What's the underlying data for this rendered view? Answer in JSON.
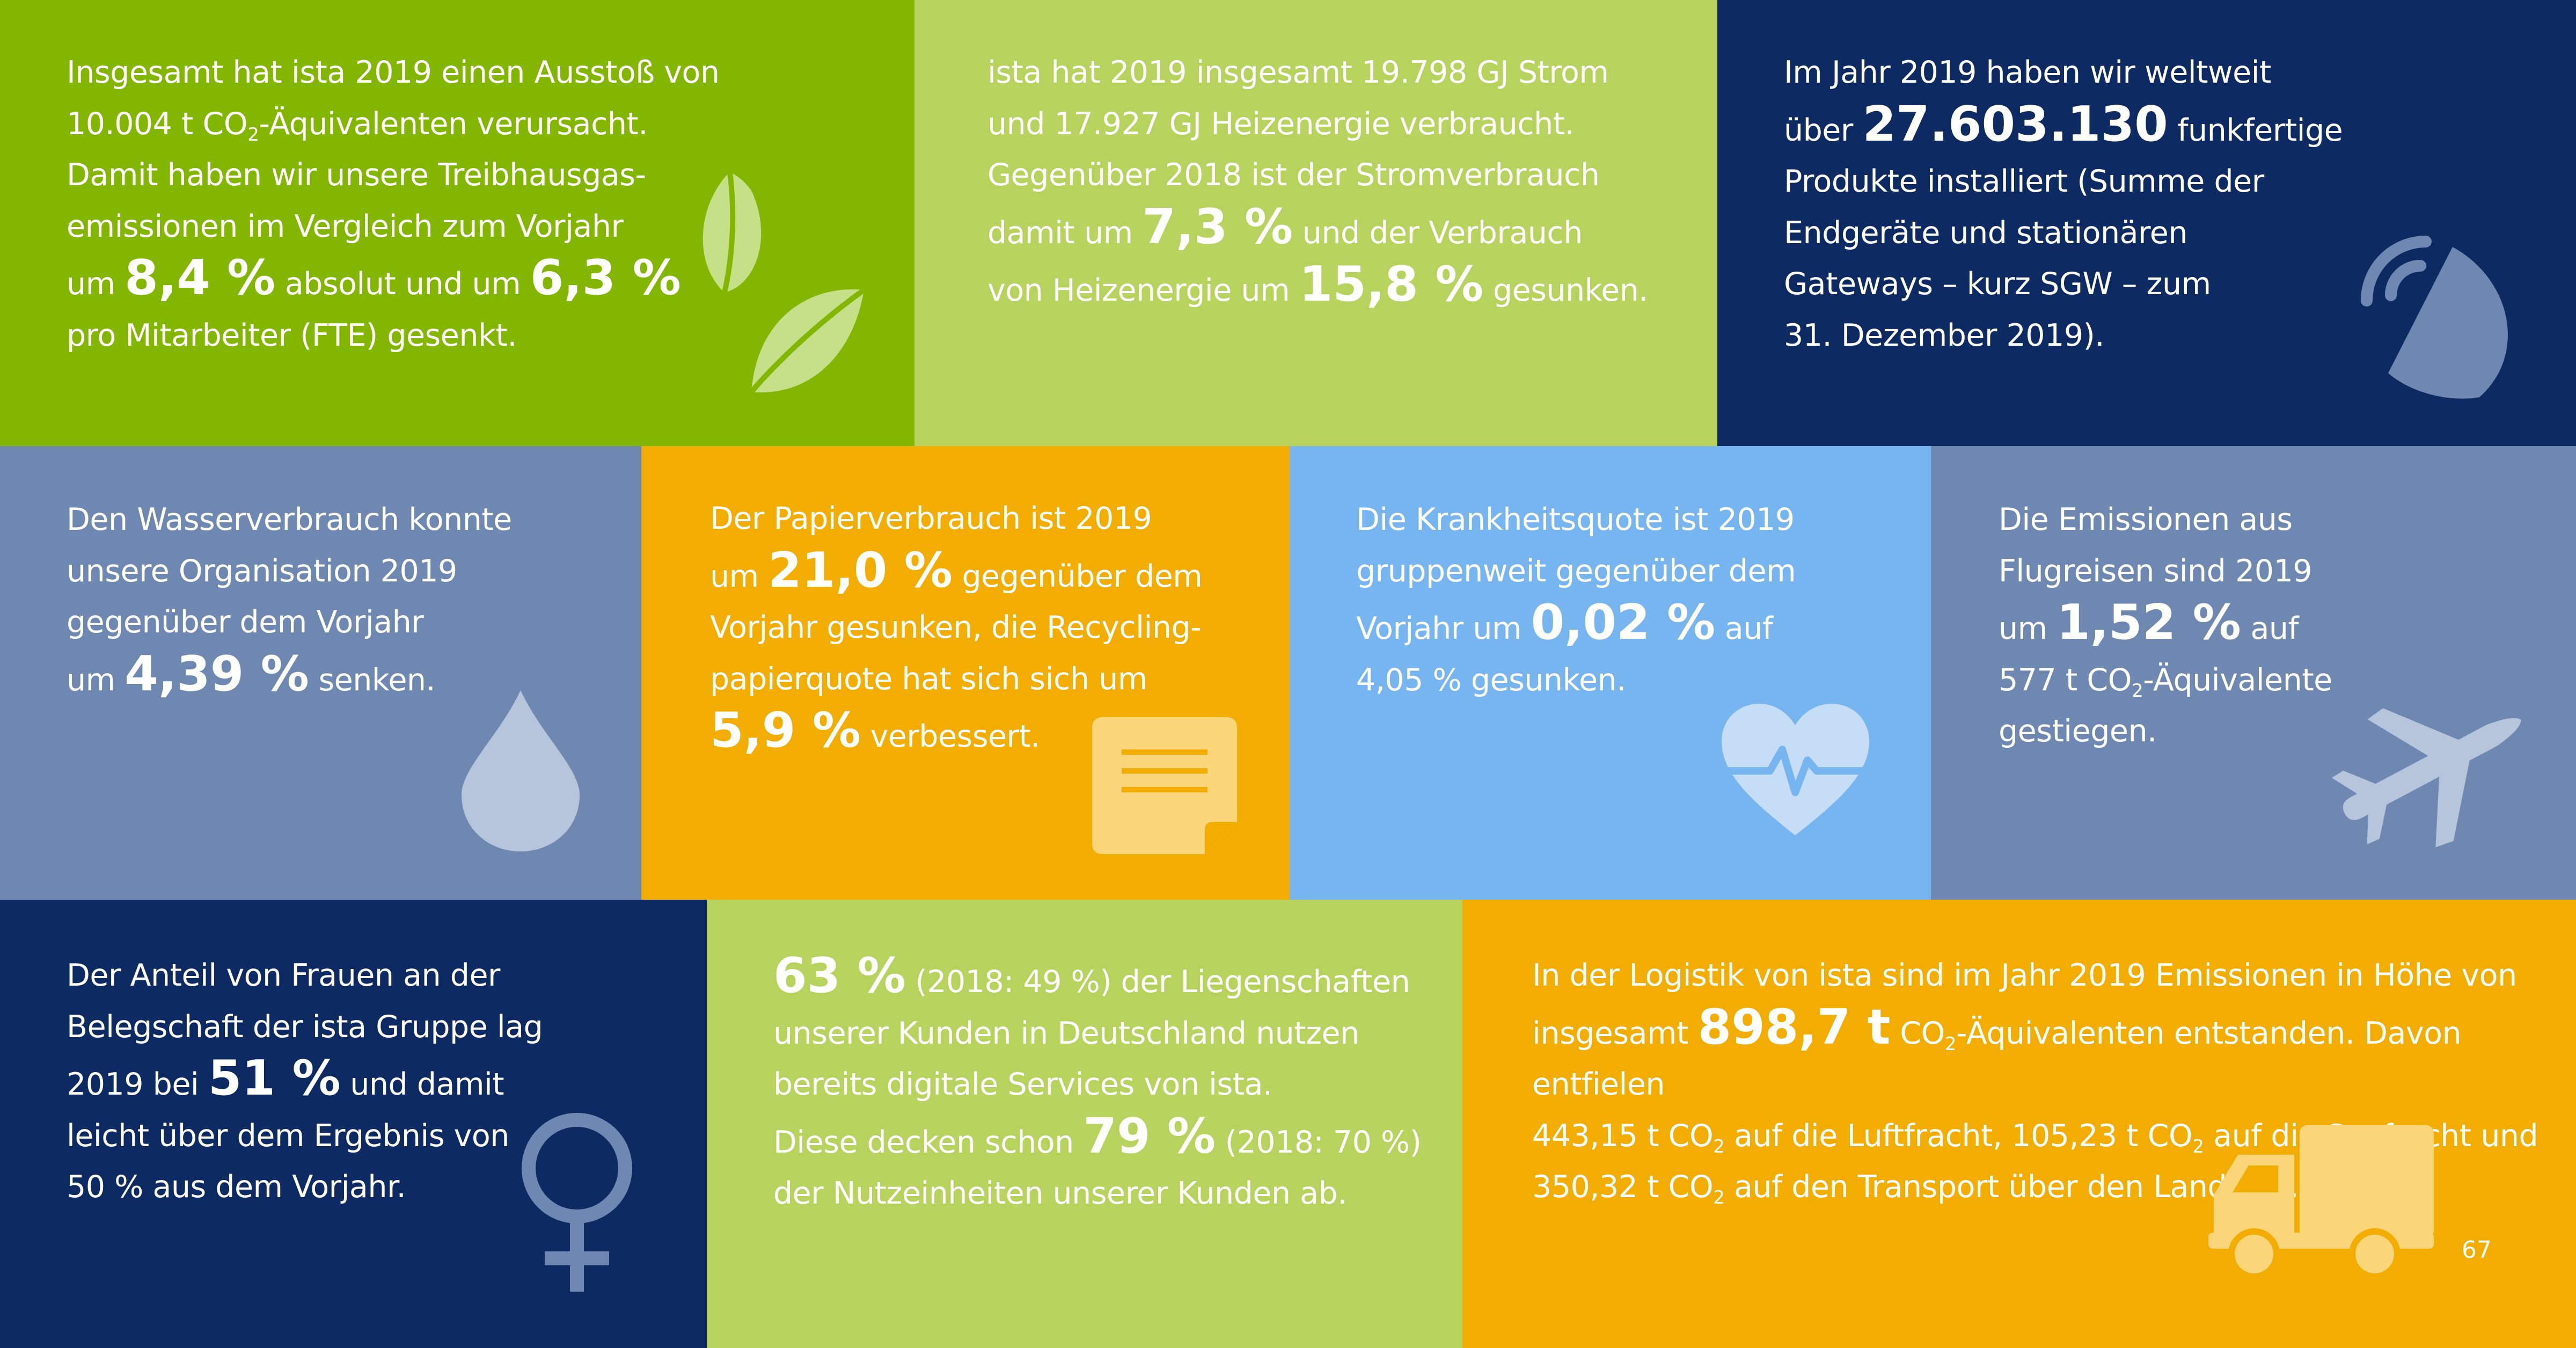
{
  "colors": {
    "green": "#82b600",
    "light_green": "#b7d35e",
    "dark_blue": "#0d2a63",
    "grey_blue": "#6f88b1",
    "orange": "#f2ad00",
    "light_blue": "#76b5f0"
  },
  "tiles": {
    "co2": {
      "icon": "leaves-icon",
      "l1": "Insgesamt hat ista 2019 einen Ausstoß von",
      "l2a": "10.004 t CO",
      "l2sub": "2",
      "l2b": "-Äquivalenten verursacht.",
      "l3": "Damit haben wir unsere Treibhausgas-",
      "l4": "emissionen im Vergleich zum Vorjahr",
      "l5a": "um ",
      "l5v1": "8,4 %",
      "l5b": " absolut und um ",
      "l5v2": "6,3 %",
      "l6": "pro Mitarbeiter (FTE) gesenkt."
    },
    "energy": {
      "l1": "ista hat 2019 insgesamt 19.798 GJ Strom",
      "l2": "und 17.927 GJ Heizenergie verbraucht.",
      "l3": "Gegenüber 2018 ist der Stromverbrauch",
      "l4a": "damit um ",
      "l4v": "7,3 %",
      "l4b": " und der Verbrauch",
      "l5a": "von Heizenergie um ",
      "l5v": "15,8 %",
      "l5b": " gesunken."
    },
    "products": {
      "icon": "satellite-dish-icon",
      "l1": "Im Jahr 2019 haben wir weltweit",
      "l2a": "über ",
      "l2v": "27.603.130",
      "l2b": " funkfertige",
      "l3": "Produkte installiert (Summe der",
      "l4": "Endgeräte und stationären",
      "l5": "Gateways – kurz SGW – zum",
      "l6": "31. Dezember 2019)."
    },
    "water": {
      "icon": "water-drop-icon",
      "l1": "Den Wasserverbrauch konnte",
      "l2": "unsere Organisation 2019",
      "l3": "gegenüber dem Vorjahr",
      "l4a": "um ",
      "l4v": "4,39 %",
      "l4b": "  senken."
    },
    "paper": {
      "icon": "paper-note-icon",
      "l1": "Der Papierverbrauch ist 2019",
      "l2a": "um ",
      "l2v": "21,0 %",
      "l2b": " gegenüber dem",
      "l3": "Vorjahr gesunken, die Recycling-",
      "l4": "papierquote hat sich sich um",
      "l5v": "5,9 %",
      "l5b": " verbessert."
    },
    "sick": {
      "icon": "heartbeat-icon",
      "l1": "Die Krankheitsquote ist 2019",
      "l2": "gruppenweit gegenüber dem",
      "l3a": "Vorjahr um ",
      "l3v": "0,02 %",
      "l3b": "  auf",
      "l4": "4,05 % gesunken."
    },
    "flights": {
      "icon": "airplane-icon",
      "l1": "Die Emissionen aus",
      "l2": "Flugreisen sind 2019",
      "l3a": "um ",
      "l3v": "1,52 %",
      "l3b": " auf",
      "l4a": "577 t CO",
      "l4sub": "2",
      "l4b": "-Äquivalente",
      "l5": "gestiegen."
    },
    "women": {
      "icon": "female-symbol-icon",
      "l1": "Der Anteil von Frauen an der",
      "l2": "Belegschaft der ista Gruppe lag",
      "l3a": "2019 bei ",
      "l3v": "51 %",
      "l3b": " und damit",
      "l4": "leicht über dem Ergebnis von",
      "l5": "50 % aus dem Vorjahr."
    },
    "digital": {
      "l1v": "63 %",
      "l1b": " (2018: 49 %) der Liegenschaften",
      "l2": "unserer Kunden in Deutschland nutzen",
      "l3": "bereits digitale Services von ista.",
      "l4a": "Diese decken schon ",
      "l4v": "79 %",
      "l4b": " (2018: 70 %)",
      "l5": "der Nutzeinheiten unserer Kunden ab."
    },
    "logistics": {
      "icon": "truck-icon",
      "l1": "In der Logistik von ista sind im Jahr 2019 Emissionen in Höhe von",
      "l2a": "insgesamt ",
      "l2v": "898,7 t",
      "l2b": " CO",
      "l2sub": "2",
      "l2c": "-Äquivalenten entstanden. Davon entfielen",
      "l3a": "443,15 t CO",
      "l3sub1": "2",
      "l3b": " auf die Luftfracht, 105,23 t CO",
      "l3sub2": "2",
      "l3c": " auf die Seefracht und",
      "l4a": "350,32 t CO",
      "l4sub": "2",
      "l4b": " auf den Transport über den Landweg."
    }
  },
  "page_number": "67"
}
